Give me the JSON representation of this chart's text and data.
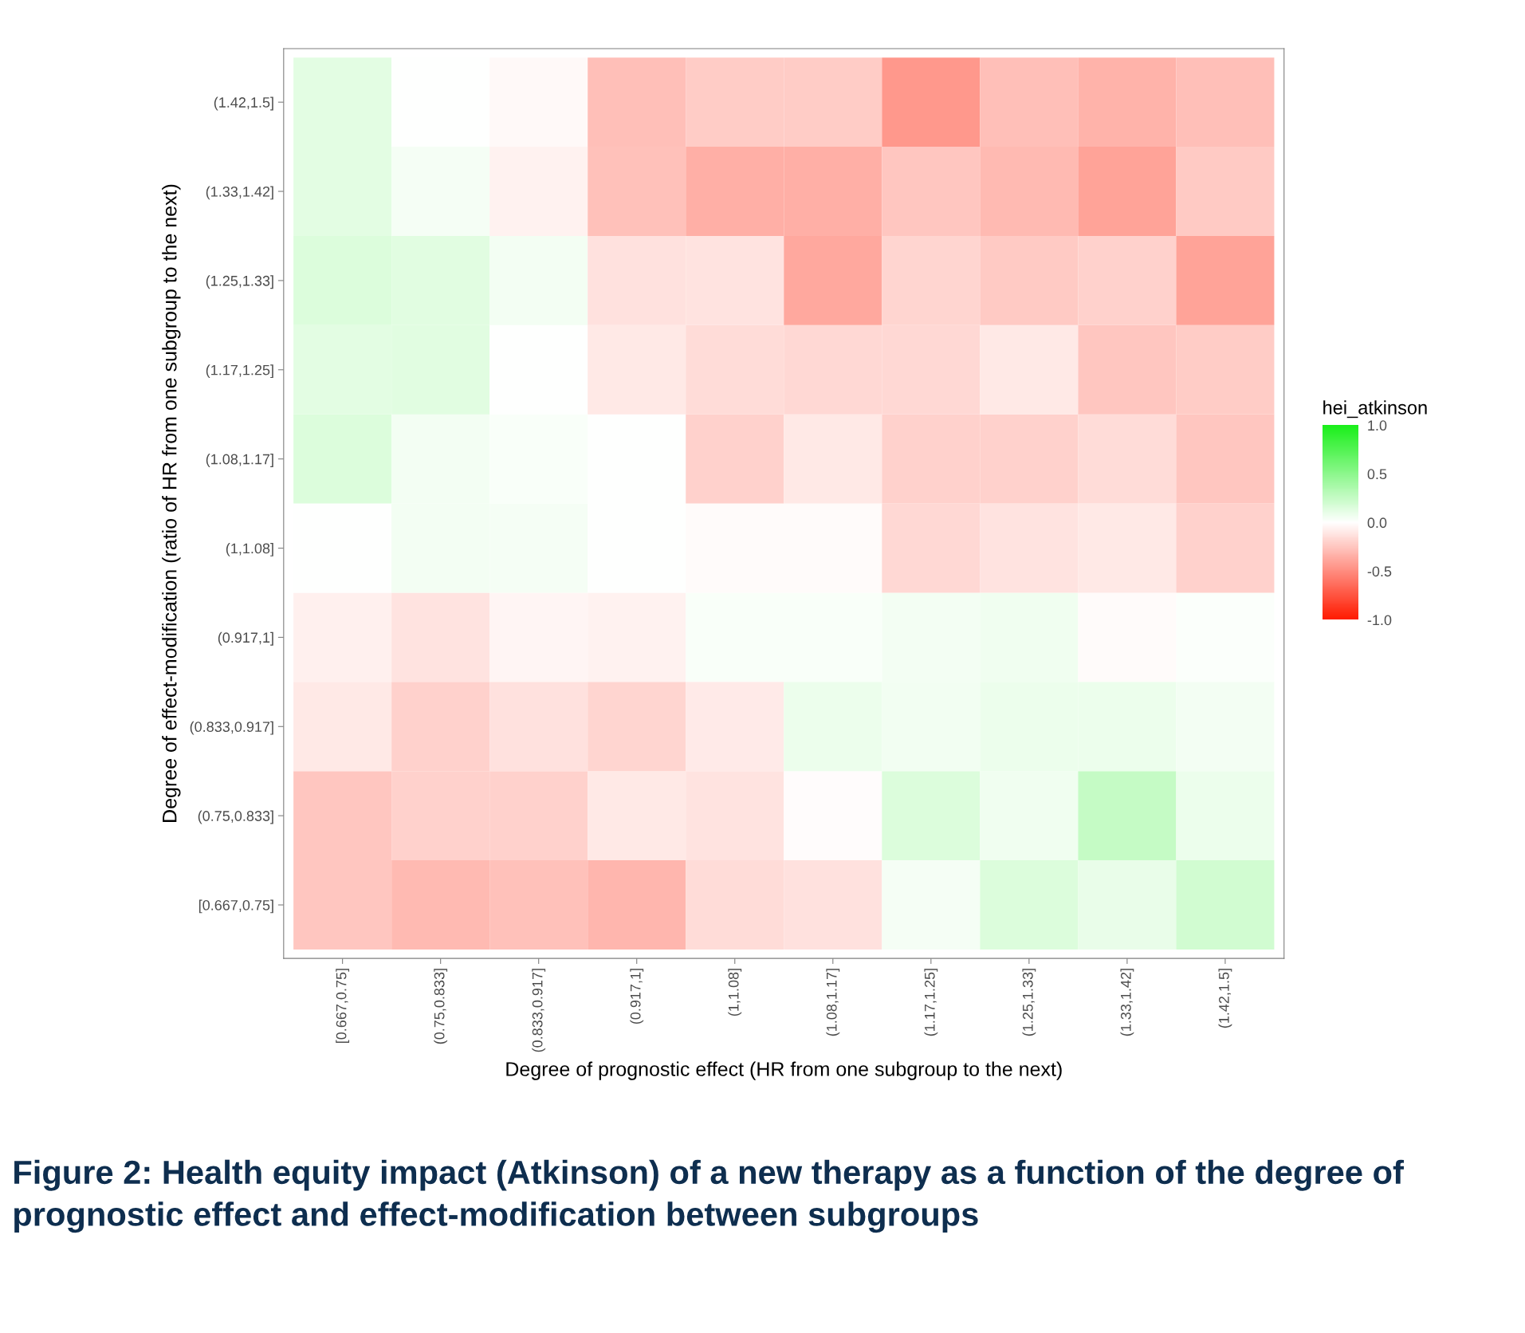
{
  "chart_data": {
    "type": "heatmap",
    "xlabel": "Degree of prognostic effect (HR from one subgroup to the next)",
    "ylabel": "Degree of effect-modification (ratio of HR from one subgroup to the next)",
    "clabel": "hei_atkinson",
    "categories": [
      "[0.667,0.75]",
      "(0.75,0.833]",
      "(0.833,0.917]",
      "(0.917,1]",
      "(1,1.08]",
      "(1.08,1.17]",
      "(1.17,1.25]",
      "(1.25,1.33]",
      "(1.33,1.42]",
      "(1.42,1.5]"
    ],
    "y_categories": [
      "(1.42,1.5]",
      "(1.33,1.42]",
      "(1.25,1.33]",
      "(1.17,1.25]",
      "(1.08,1.17]",
      "(1,1.08]",
      "(0.917,1]",
      "(0.833,0.917]",
      "(0.75,0.833]",
      "[0.667,0.75]"
    ],
    "cells": [
      [
        0.12,
        0.0,
        -0.03,
        -0.28,
        -0.22,
        -0.22,
        -0.45,
        -0.28,
        -0.33,
        -0.28
      ],
      [
        0.12,
        0.04,
        -0.06,
        -0.27,
        -0.35,
        -0.35,
        -0.25,
        -0.3,
        -0.4,
        -0.23
      ],
      [
        0.15,
        0.13,
        0.05,
        -0.13,
        -0.12,
        -0.38,
        -0.18,
        -0.23,
        -0.2,
        -0.4
      ],
      [
        0.12,
        0.13,
        0.0,
        -0.1,
        -0.15,
        -0.17,
        -0.17,
        -0.1,
        -0.25,
        -0.22
      ],
      [
        0.15,
        0.05,
        0.03,
        0.0,
        -0.2,
        -0.1,
        -0.2,
        -0.2,
        -0.15,
        -0.25
      ],
      [
        0.0,
        0.05,
        0.04,
        0.0,
        -0.02,
        -0.02,
        -0.17,
        -0.12,
        -0.1,
        -0.2
      ],
      [
        -0.07,
        -0.12,
        -0.04,
        -0.06,
        0.03,
        0.03,
        0.05,
        0.07,
        -0.02,
        0.02
      ],
      [
        -0.1,
        -0.2,
        -0.13,
        -0.18,
        -0.09,
        0.08,
        0.06,
        0.08,
        0.08,
        0.05
      ],
      [
        -0.25,
        -0.2,
        -0.2,
        -0.1,
        -0.12,
        -0.01,
        0.15,
        0.07,
        0.25,
        0.08
      ],
      [
        -0.25,
        -0.3,
        -0.27,
        -0.32,
        -0.15,
        -0.13,
        0.04,
        0.15,
        0.1,
        0.2
      ]
    ],
    "clim": [
      -1,
      1
    ],
    "cticks": [
      {
        "value": 1,
        "label": "1.0"
      },
      {
        "value": 0.5,
        "label": "0.5"
      },
      {
        "value": 0,
        "label": "0.0"
      },
      {
        "value": -0.5,
        "label": "-0.5"
      },
      {
        "value": -1,
        "label": "-1.0"
      }
    ],
    "annotations": [
      "Figure 2: Health equity impact (Atkinson) of a new therapy as a function of the degree of prognostic effect and effect-modification between subgroups"
    ]
  }
}
